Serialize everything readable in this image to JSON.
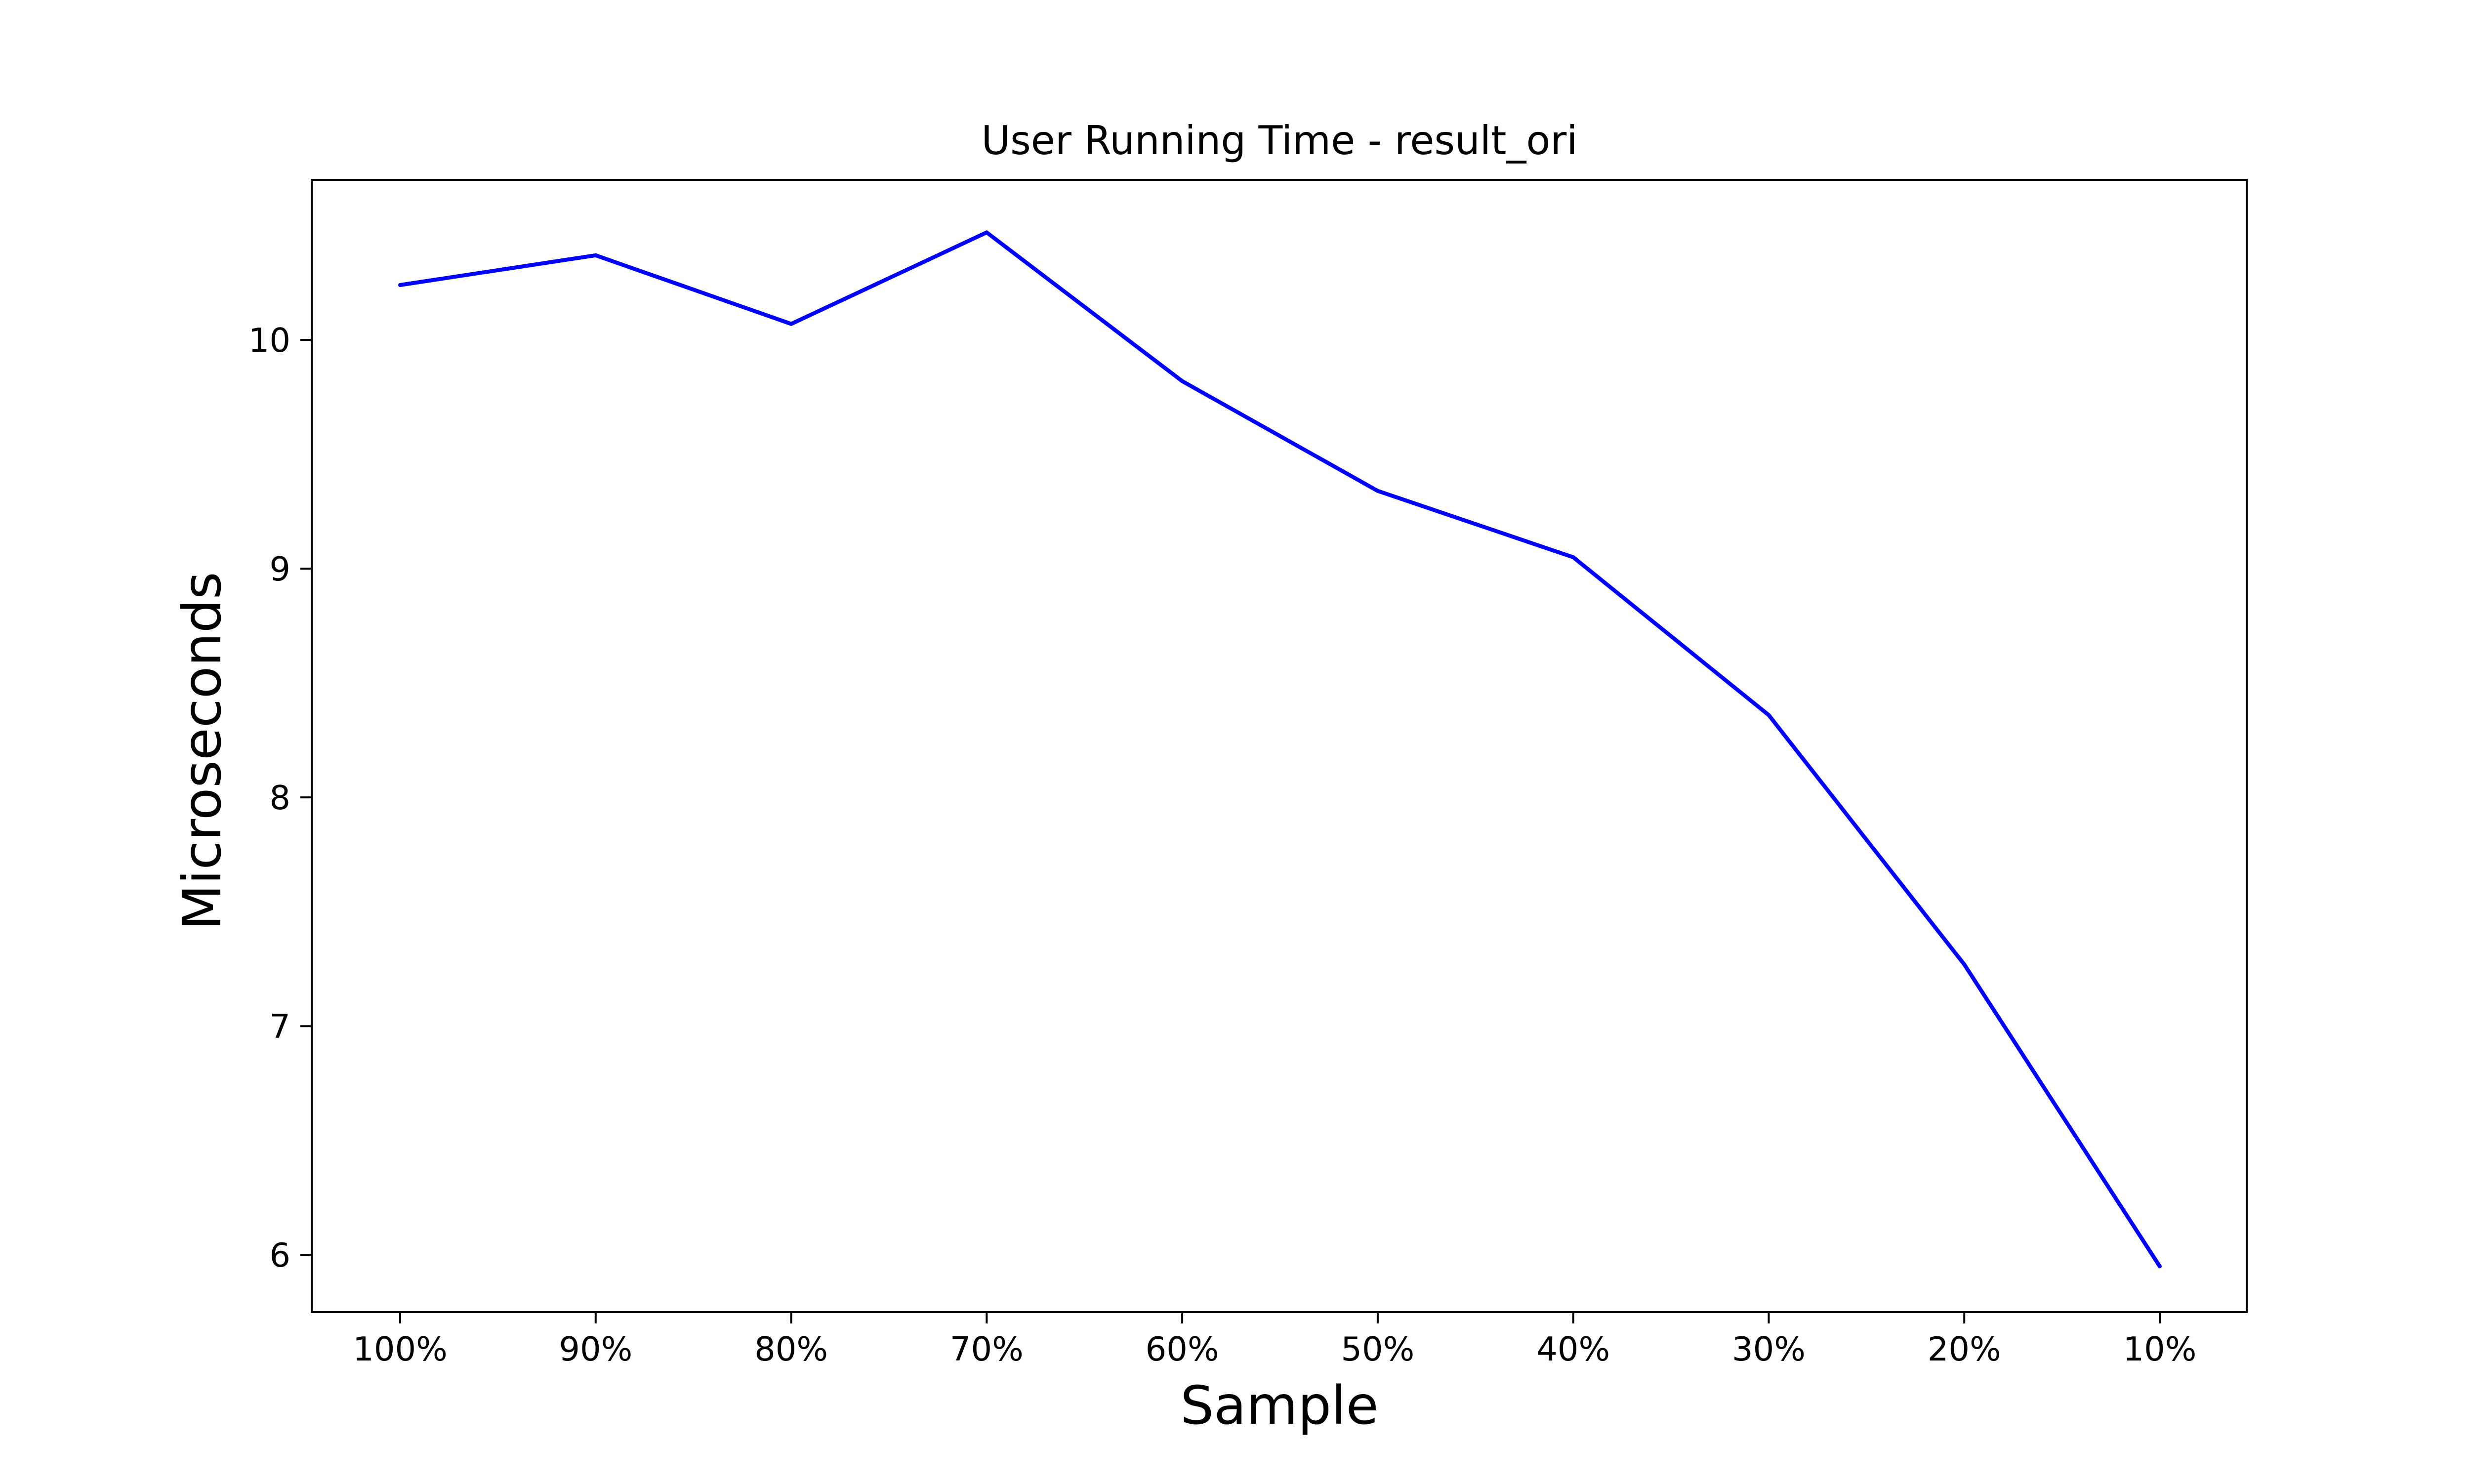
{
  "chart_data": {
    "type": "line",
    "title": "User Running Time - result_ori",
    "xlabel": "Sample",
    "ylabel": "Microseconds",
    "categories": [
      "100%",
      "90%",
      "80%",
      "70%",
      "60%",
      "50%",
      "40%",
      "30%",
      "20%",
      "10%"
    ],
    "series": [
      {
        "values": [
          10.24,
          10.37,
          10.07,
          10.47,
          9.82,
          9.34,
          9.05,
          8.36,
          7.27,
          5.95
        ],
        "color": "#0000ff"
      }
    ],
    "ylim": [
      5.75,
      10.7
    ],
    "yticks": [
      6,
      7,
      8,
      9,
      10
    ],
    "ytick_labels": [
      "6",
      "7",
      "8",
      "9",
      "10"
    ],
    "grid": false,
    "legend": "none",
    "colors": {
      "line": "#0000ff",
      "axes": "#000000",
      "background": "#ffffff"
    }
  }
}
